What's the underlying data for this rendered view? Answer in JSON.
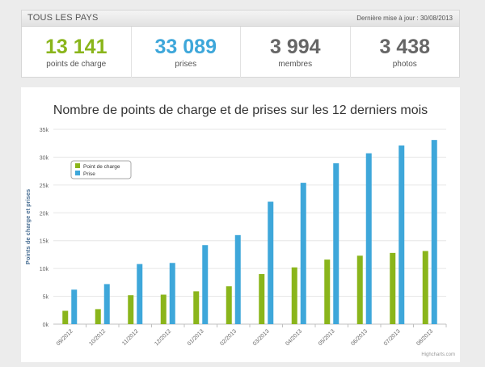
{
  "header": {
    "title": "TOUS LES PAYS",
    "update": "Dernière mise à jour : 30/08/2013"
  },
  "stats": [
    {
      "value": "13 141",
      "label": "points de charge",
      "color": "#8ab51b"
    },
    {
      "value": "33 089",
      "label": "prises",
      "color": "#3ea7da"
    },
    {
      "value": "3 994",
      "label": "membres",
      "color": "#666666"
    },
    {
      "value": "3 438",
      "label": "photos",
      "color": "#666666"
    }
  ],
  "chart_data": {
    "type": "bar",
    "title": "Nombre de points de charge et de prises sur les 12 derniers mois",
    "xlabel": "",
    "ylabel": "Points de charge et prises",
    "ylim": [
      0,
      35000
    ],
    "yticks": [
      "0k",
      "5k",
      "10k",
      "15k",
      "20k",
      "25k",
      "30k",
      "35k"
    ],
    "categories": [
      "09/2012",
      "10/2012",
      "11/2012",
      "12/2012",
      "01/2013",
      "02/2013",
      "03/2013",
      "04/2013",
      "05/2013",
      "06/2013",
      "07/2013",
      "08/2013"
    ],
    "series": [
      {
        "name": "Point de charge",
        "color": "#8ab51b",
        "values": [
          2400,
          2700,
          5200,
          5300,
          5900,
          6800,
          9000,
          10200,
          11600,
          12300,
          12800,
          13141
        ]
      },
      {
        "name": "Prise",
        "color": "#3ea7da",
        "values": [
          6200,
          7200,
          10800,
          11000,
          14200,
          16000,
          22000,
          25400,
          28900,
          30700,
          32100,
          33089
        ]
      }
    ],
    "grid": true,
    "legend_position": "top-left",
    "credit": "Highcharts.com"
  }
}
